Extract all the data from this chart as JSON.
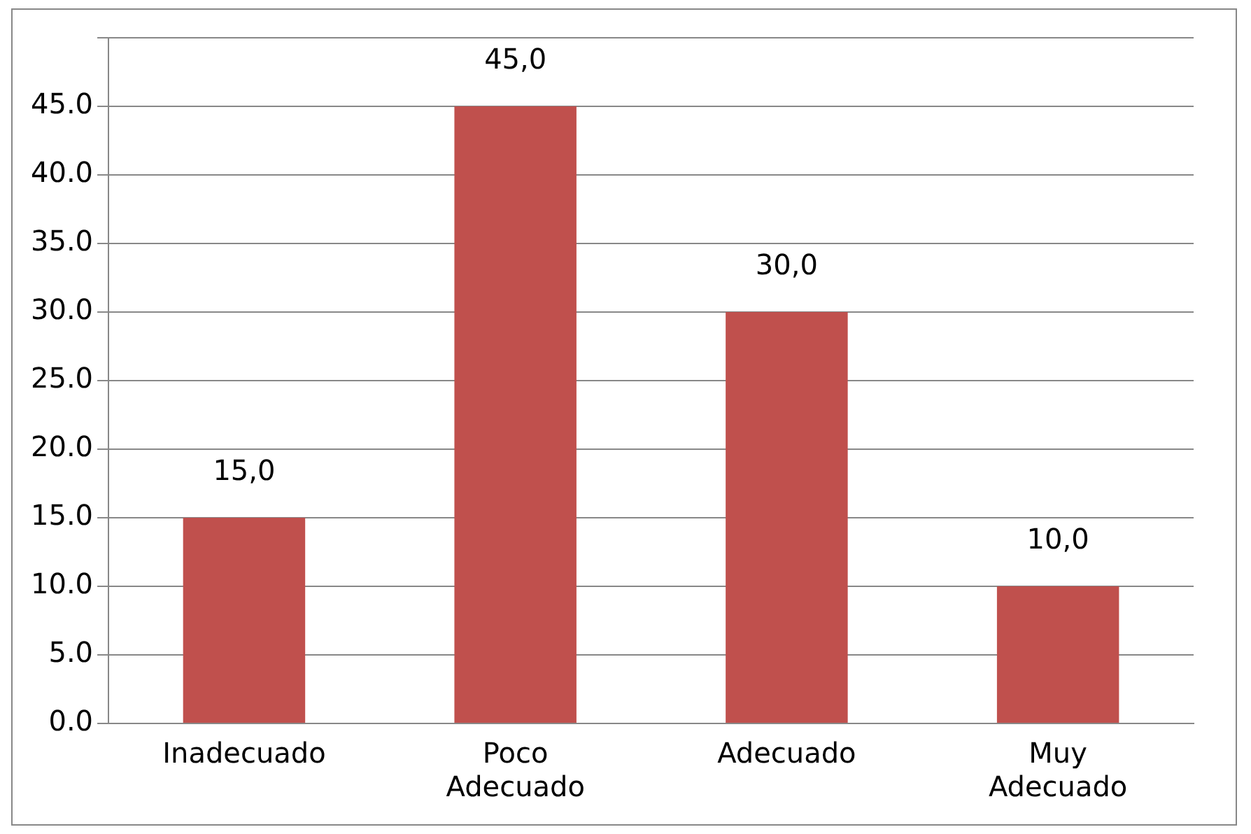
{
  "chart_data": {
    "type": "bar",
    "categories": [
      "Inadecuado",
      "Poco Adecuado",
      "Adecuado",
      "Muy Adecuado"
    ],
    "values": [
      15,
      45,
      30,
      10
    ],
    "color": "#c0504d",
    "value_labels": [
      "15,0",
      "45,0",
      "30,0",
      "10,0"
    ],
    "ylim": [
      0,
      50
    ],
    "yticks": [
      {
        "value": 0,
        "label": "0.0"
      },
      {
        "value": 5,
        "label": "5.0"
      },
      {
        "value": 10,
        "label": "10.0"
      },
      {
        "value": 15,
        "label": "15.0"
      },
      {
        "value": 20,
        "label": "20.0"
      },
      {
        "value": 25,
        "label": "25.0"
      },
      {
        "value": 30,
        "label": "30.0"
      },
      {
        "value": 35,
        "label": "35.0"
      },
      {
        "value": 40,
        "label": "40.0"
      },
      {
        "value": 45,
        "label": "45.0"
      },
      {
        "value": 50,
        "label": null
      }
    ],
    "grid": true
  }
}
